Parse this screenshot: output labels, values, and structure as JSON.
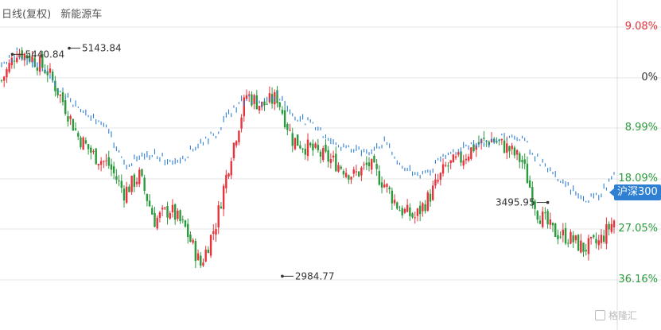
{
  "header": {
    "period": "日线(复权)",
    "name": "新能源车"
  },
  "benchmark_tag": "沪深300",
  "watermark": "格隆汇",
  "colors": {
    "up": "#e8323c",
    "down": "#2a9a3c",
    "benchmark": "#2f7fd3",
    "grid": "#e6e6e6"
  },
  "right_axis": [
    {
      "label": "9.08%",
      "color": "#e8323c"
    },
    {
      "label": "0%",
      "color": "#333333"
    },
    {
      "label": "8.99%",
      "color": "#2a9a3c"
    },
    {
      "label": "18.09%",
      "color": "#2a9a3c"
    },
    {
      "label": "27.05%",
      "color": "#2a9a3c"
    },
    {
      "label": "36.16%",
      "color": "#2a9a3c"
    }
  ],
  "chart_data": {
    "type": "line",
    "title": "新能源车",
    "xlabel": "",
    "ylabel": "",
    "y_scale_note": "relative change",
    "ylim": [
      -36.16,
      9.08
    ],
    "y_ticks": [
      9.08,
      0,
      -8.99,
      -18.09,
      -27.05,
      -36.16
    ],
    "x": [
      0,
      6,
      12,
      18,
      24,
      30,
      36,
      42,
      48,
      54,
      60,
      66,
      72,
      78,
      84,
      90,
      96,
      102,
      108,
      114,
      120,
      126,
      132,
      138,
      144,
      150,
      156,
      162,
      168,
      174,
      180,
      186,
      192,
      198,
      204,
      210,
      216,
      222,
      228,
      234,
      240
    ],
    "series": [
      {
        "name": "新能源车",
        "style": "candlestick",
        "values": [
          -0.5,
          4.8,
          3.5,
          1.2,
          -4.2,
          -10.5,
          -13.8,
          -15.6,
          -20.5,
          -17.5,
          -25.5,
          -23.5,
          -27,
          -33.5,
          -26,
          -13.5,
          -3,
          -5,
          -3.5,
          -11,
          -12.5,
          -14,
          -15.5,
          -17.5,
          -15.5,
          -19,
          -23.5,
          -25,
          -21,
          -16,
          -14.5,
          -12,
          -11,
          -12.5,
          -15,
          -24,
          -27.5,
          -28.5,
          -30.5,
          -29.5,
          -25.5
        ]
      },
      {
        "name": "沪深300",
        "style": "line",
        "values": [
          2.2,
          4.5,
          2.8,
          0.4,
          -2.5,
          -5.5,
          -7.5,
          -9.5,
          -15.5,
          -14.5,
          -13.5,
          -15,
          -14,
          -11.5,
          -10,
          -6,
          -3.5,
          -4.5,
          -3,
          -6.5,
          -8,
          -10,
          -12,
          -13,
          -13,
          -11.5,
          -15.5,
          -17.5,
          -16.5,
          -14,
          -12.5,
          -11.5,
          -11.5,
          -10.5,
          -10.8,
          -14.5,
          -17.5,
          -19.5,
          -22,
          -21,
          -17.5
        ]
      }
    ],
    "annotations": [
      {
        "label": "5440.84",
        "series": "新能源车",
        "x": 4.2,
        "y": 4.2
      },
      {
        "label": "5143.84",
        "series": "沪深300",
        "x": 26.5,
        "y": 5.3
      },
      {
        "label": "2984.77",
        "series": "新能源车",
        "x": 110,
        "y": -35.5
      },
      {
        "label": "3495.95",
        "series": "沪深300",
        "x": 214,
        "y": -22.3
      }
    ]
  }
}
